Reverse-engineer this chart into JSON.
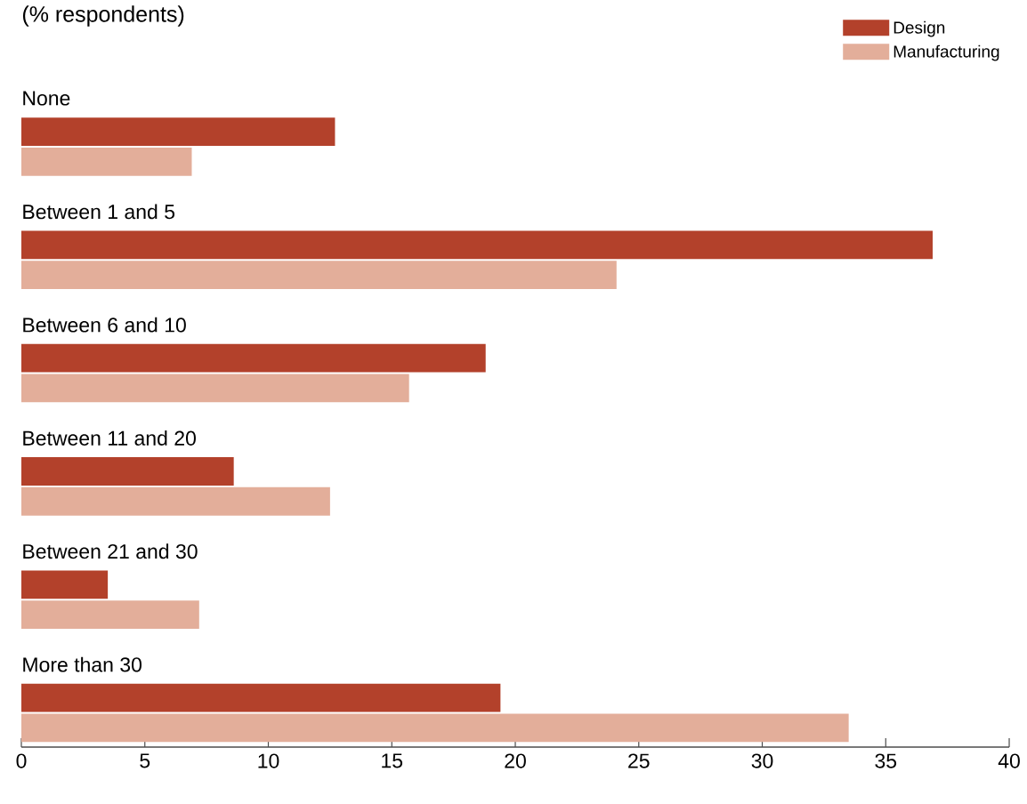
{
  "chart_data": {
    "type": "bar",
    "orientation": "horizontal",
    "title": "(% respondents)",
    "categories": [
      "None",
      "Between 1 and 5",
      "Between 6 and 10",
      "Between 11 and 20",
      "Between 21 and 30",
      "More than 30"
    ],
    "series": [
      {
        "name": "Design",
        "color": "#b3412b",
        "values": [
          12.7,
          36.9,
          18.8,
          8.6,
          3.5,
          19.4
        ]
      },
      {
        "name": "Manufacturing",
        "color": "#e3ae9a",
        "values": [
          6.9,
          24.1,
          15.7,
          12.5,
          7.2,
          33.5
        ]
      }
    ],
    "xlim": [
      0,
      40
    ],
    "xticks": [
      0,
      5,
      10,
      15,
      20,
      25,
      30,
      35,
      40
    ],
    "legend": "top right"
  }
}
